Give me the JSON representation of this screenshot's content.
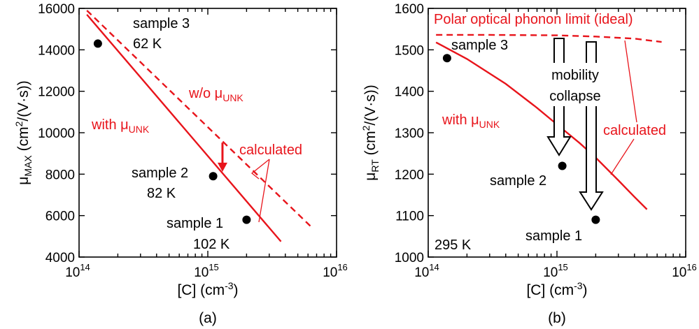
{
  "colors": {
    "axis": "#000000",
    "red": "#e8141b"
  },
  "chart_data": [
    {
      "type": "scatter",
      "panel": "(a)",
      "xscale": "log",
      "xlim": [
        100000000000000.0,
        1e+16
      ],
      "ylim": [
        4000,
        16000
      ],
      "xlabel": "[C] (cm-3)",
      "ylabel": "μMAX (cm2/(V·s))",
      "xticks": [
        {
          "v": 100000000000000.0,
          "base": "10",
          "exp": "14"
        },
        {
          "v": 1000000000000000.0,
          "base": "10",
          "exp": "15"
        },
        {
          "v": 1e+16,
          "base": "10",
          "exp": "16"
        }
      ],
      "yticks": [
        {
          "v": 4000,
          "label": "4000"
        },
        {
          "v": 6000,
          "label": "6000"
        },
        {
          "v": 8000,
          "label": "8000"
        },
        {
          "v": 10000,
          "label": "10000"
        },
        {
          "v": 12000,
          "label": "12000"
        },
        {
          "v": 14000,
          "label": "14000"
        },
        {
          "v": 16000,
          "label": "16000"
        }
      ],
      "points": [
        {
          "name": "sample 3",
          "temp": "62 K",
          "x": 140000000000000.0,
          "y": 14300
        },
        {
          "name": "sample 2",
          "temp": "82 K",
          "x": 1100000000000000.0,
          "y": 7900
        },
        {
          "name": "sample 1",
          "temp": "102 K",
          "x": 2000000000000000.0,
          "y": 5800
        }
      ],
      "series": [
        {
          "name": "with μUNK",
          "style": "solid",
          "x": [
            115000000000000.0,
            3700000000000000.0
          ],
          "y": [
            15700,
            4750
          ]
        },
        {
          "name": "w/o μUNK",
          "style": "dashed",
          "x": [
            115000000000000.0,
            6500000000000000.0
          ],
          "y": [
            15900,
            5400
          ]
        }
      ],
      "annotations": {
        "with": {
          "text": "with μ",
          "sub": "UNK"
        },
        "without": {
          "text": "w/o μ",
          "sub": "UNK"
        },
        "calculated": "calculated",
        "arrow_x": 1300000000000000.0
      }
    },
    {
      "type": "scatter",
      "panel": "(b)",
      "xscale": "log",
      "xlim": [
        100000000000000.0,
        1e+16
      ],
      "ylim": [
        1000,
        1600
      ],
      "xlabel": "[C] (cm-3)",
      "ylabel": "μRT (cm2/(V·s))",
      "xticks": [
        {
          "v": 100000000000000.0,
          "base": "10",
          "exp": "14"
        },
        {
          "v": 1000000000000000.0,
          "base": "10",
          "exp": "15"
        },
        {
          "v": 1e+16,
          "base": "10",
          "exp": "16"
        }
      ],
      "yticks": [
        {
          "v": 1000,
          "label": "1000"
        },
        {
          "v": 1100,
          "label": "1100"
        },
        {
          "v": 1200,
          "label": "1200"
        },
        {
          "v": 1300,
          "label": "1300"
        },
        {
          "v": 1400,
          "label": "1400"
        },
        {
          "v": 1500,
          "label": "1500"
        },
        {
          "v": 1600,
          "label": "1600"
        }
      ],
      "points": [
        {
          "name": "sample 3",
          "x": 140000000000000.0,
          "y": 1480
        },
        {
          "name": "sample 2",
          "x": 1100000000000000.0,
          "y": 1220
        },
        {
          "name": "sample 1",
          "x": 2000000000000000.0,
          "y": 1090
        }
      ],
      "series": [
        {
          "name": "Polar optical phonon limit (ideal)",
          "style": "dashed",
          "x": [
            115000000000000.0,
            300000000000000.0,
            1000000000000000.0,
            2000000000000000.0,
            4000000000000000.0,
            6500000000000000.0
          ],
          "y": [
            1536,
            1536,
            1535,
            1532,
            1527,
            1519
          ]
        },
        {
          "name": "with μUNK",
          "style": "solid",
          "x": [
            115000000000000.0,
            200000000000000.0,
            400000000000000.0,
            700000000000000.0,
            1000000000000000.0,
            1500000000000000.0,
            2000000000000000.0,
            3000000000000000.0,
            4000000000000000.0,
            5000000000000000.0
          ],
          "y": [
            1518,
            1478,
            1418,
            1360,
            1320,
            1275,
            1240,
            1185,
            1145,
            1115
          ]
        }
      ],
      "annotations": {
        "phonon": "Polar optical phonon limit (ideal)",
        "with": {
          "text": "with μ",
          "sub": "UNK"
        },
        "collapse1": "mobility",
        "collapse2": "collapse",
        "calculated": "calculated",
        "temperature": "295 K"
      }
    }
  ]
}
